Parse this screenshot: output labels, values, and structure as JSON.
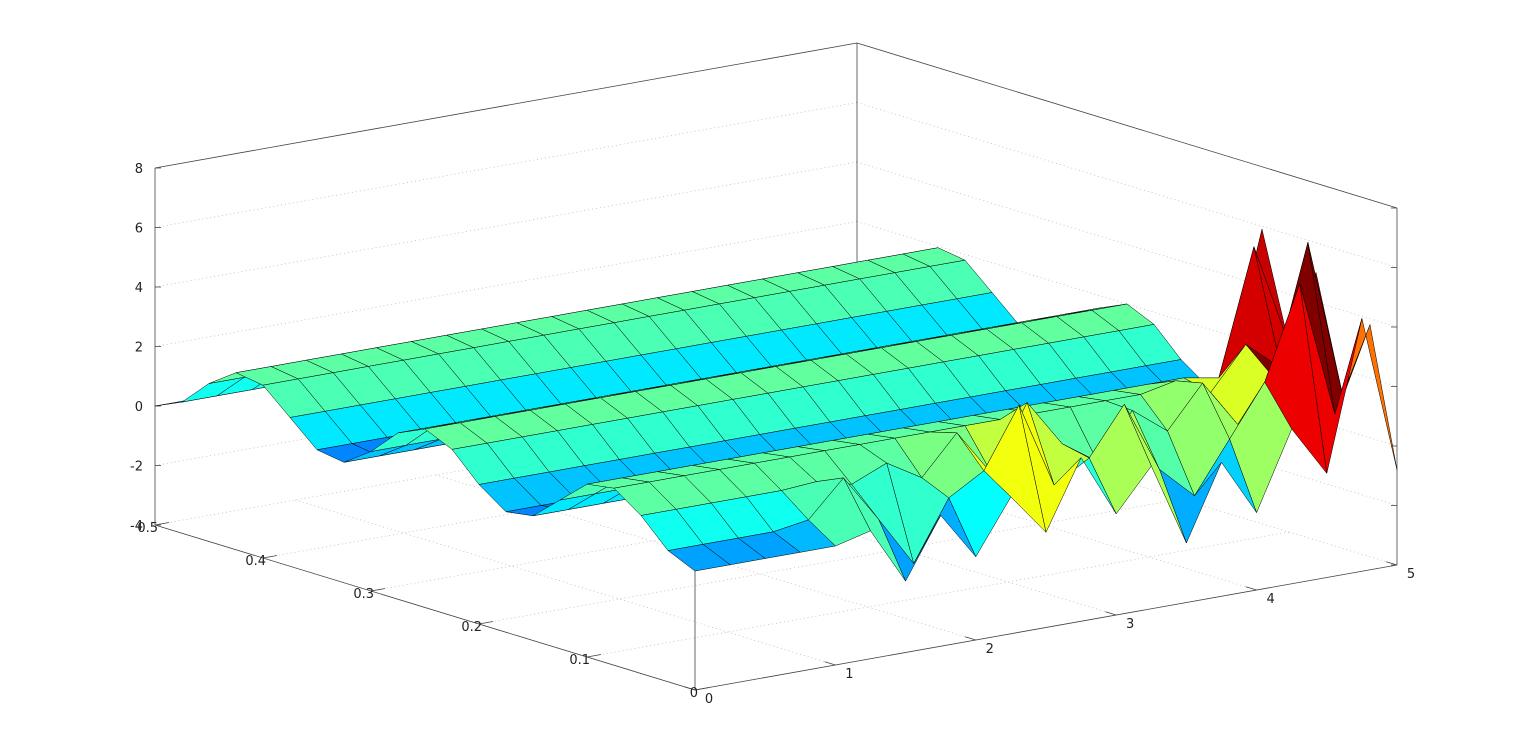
{
  "chart_data": {
    "type": "surface",
    "x": [
      0,
      0.25,
      0.5,
      0.75,
      1,
      1.25,
      1.5,
      1.75,
      2,
      2.25,
      2.5,
      2.75,
      3,
      3.25,
      3.5,
      3.75,
      4,
      4.25,
      4.5,
      4.75,
      5
    ],
    "y": [
      0,
      0.025,
      0.05,
      0.075,
      0.1,
      0.125,
      0.15,
      0.175,
      0.2,
      0.225,
      0.25,
      0.275,
      0.3,
      0.325,
      0.35,
      0.375,
      0.4,
      0.425,
      0.45,
      0.475,
      0.5
    ],
    "z": [
      [
        0,
        0,
        0,
        0,
        0,
        0.3,
        -1.6,
        0.4,
        -1.2,
        0.6,
        -0.8,
        1.5,
        -0.6,
        0.8,
        -2.0,
        0.5,
        -1.4,
        1.2,
        -0.5,
        4.5,
        -0.8
      ],
      [
        0.41,
        0.41,
        0.41,
        0.41,
        0.6,
        1.8,
        0.2,
        -1.5,
        0.5,
        1.2,
        3.2,
        0.3,
        1.0,
        2.6,
        0.2,
        -0.9,
        0.8,
        2.5,
        5.6,
        1.0,
        3.8
      ],
      [
        1.31,
        1.31,
        1.31,
        1.31,
        1.31,
        1.4,
        1.1,
        1.6,
        0.9,
        2.2,
        0.6,
        2.8,
        1.2,
        0.4,
        1.9,
        1.0,
        2.4,
        0.8,
        2.2,
        6.5,
        1.1
      ],
      [
        1.95,
        1.95,
        1.95,
        1.95,
        1.95,
        1.95,
        1.95,
        1.95,
        1.95,
        1.95,
        1.95,
        1.95,
        1.95,
        1.95,
        1.95,
        1.95,
        2.2,
        1.6,
        3.0,
        2.0,
        5.0
      ],
      [
        1.81,
        1.81,
        1.81,
        1.81,
        1.81,
        1.81,
        1.81,
        1.81,
        1.81,
        1.81,
        1.81,
        1.81,
        1.81,
        1.81,
        1.81,
        1.81,
        1.81,
        1.81,
        1.6,
        5.8,
        2.3
      ],
      [
        1,
        1,
        1,
        1,
        1,
        1,
        1,
        1,
        1,
        1,
        1,
        1,
        1,
        1,
        1,
        1,
        1,
        1,
        1,
        1.2,
        5.9
      ],
      [
        0.19,
        0.19,
        0.19,
        0.19,
        0.19,
        0.19,
        0.19,
        0.19,
        0.19,
        0.19,
        0.19,
        0.19,
        0.19,
        0.19,
        0.19,
        0.19,
        0.19,
        0.19,
        0.19,
        0.19,
        0.4
      ],
      [
        0.05,
        0.05,
        0.05,
        0.05,
        0.05,
        0.05,
        0.05,
        0.05,
        0.05,
        0.05,
        0.05,
        0.05,
        0.05,
        0.05,
        0.05,
        0.05,
        0.05,
        0.05,
        0.05,
        0.05,
        0.05
      ],
      [
        0.69,
        0.69,
        0.69,
        0.69,
        0.69,
        0.69,
        0.69,
        0.69,
        0.69,
        0.69,
        0.69,
        0.69,
        0.69,
        0.69,
        0.69,
        0.69,
        0.69,
        0.69,
        0.69,
        0.69,
        0.69
      ],
      [
        1.59,
        1.59,
        1.59,
        1.59,
        1.59,
        1.59,
        1.59,
        1.59,
        1.59,
        1.59,
        1.59,
        1.59,
        1.59,
        1.59,
        1.59,
        1.59,
        1.59,
        1.59,
        1.59,
        1.59,
        1.59
      ],
      [
        2,
        2,
        2,
        2,
        2,
        2,
        2,
        2,
        2,
        2,
        2,
        2,
        2,
        2,
        2,
        2,
        2,
        2,
        2,
        2,
        2
      ],
      [
        1.59,
        1.59,
        1.59,
        1.59,
        1.59,
        1.59,
        1.59,
        1.59,
        1.59,
        1.59,
        1.59,
        1.59,
        1.59,
        1.59,
        1.59,
        1.59,
        1.59,
        1.59,
        1.59,
        1.59,
        1.59
      ],
      [
        0.69,
        0.69,
        0.69,
        0.69,
        0.69,
        0.69,
        0.69,
        0.69,
        0.69,
        0.69,
        0.69,
        0.69,
        0.69,
        0.69,
        0.69,
        0.69,
        0.69,
        0.69,
        0.69,
        0.69,
        0.69
      ],
      [
        0.05,
        0.05,
        0.05,
        0.05,
        0.05,
        0.05,
        0.05,
        0.05,
        0.05,
        0.05,
        0.05,
        0.05,
        0.05,
        0.05,
        0.05,
        0.05,
        0.05,
        0.05,
        0.05,
        0.05,
        0.05
      ],
      [
        0.19,
        0.19,
        0.19,
        0.19,
        0.19,
        0.19,
        0.19,
        0.19,
        0.19,
        0.19,
        0.19,
        0.19,
        0.19,
        0.19,
        0.19,
        0.19,
        0.19,
        0.19,
        0.19,
        0.19,
        0.19
      ],
      [
        1,
        1,
        1,
        1,
        1,
        1,
        1,
        1,
        1,
        1,
        1,
        1,
        1,
        1,
        1,
        1,
        1,
        1,
        1,
        1,
        1
      ],
      [
        1.81,
        1.81,
        1.81,
        1.81,
        1.81,
        1.81,
        1.81,
        1.81,
        1.81,
        1.81,
        1.81,
        1.81,
        1.81,
        1.81,
        1.81,
        1.81,
        1.81,
        1.81,
        1.81,
        1.81,
        1.81
      ],
      [
        1.95,
        1.95,
        1.95,
        1.95,
        1.95,
        1.95,
        1.95,
        1.95,
        1.95,
        1.95,
        1.95,
        1.95,
        1.95,
        1.95,
        1.95,
        1.95,
        1.95,
        1.95,
        1.95,
        1.95,
        1.95
      ],
      [
        1.31,
        1.31,
        1.31,
        1.31,
        1.31,
        1.31,
        1.31,
        1.31,
        1.31,
        1.31,
        1.31,
        1.31,
        1.31,
        1.31,
        1.31,
        1.31,
        1.31,
        1.31,
        1.31,
        1.31,
        1.31
      ],
      [
        0.41,
        0.41,
        0.41,
        0.41,
        0.41,
        0.41,
        0.41,
        0.41,
        0.41,
        0.41,
        0.41,
        0.41,
        0.41,
        0.41,
        0.41,
        0.41,
        0.41,
        0.41,
        0.41,
        0.41,
        0.41
      ],
      [
        0,
        0,
        0,
        0,
        0,
        0,
        0,
        0,
        0,
        0,
        0,
        0,
        0,
        0,
        0,
        0,
        0,
        0,
        0,
        0,
        0
      ]
    ],
    "xlim": [
      0,
      5
    ],
    "ylim": [
      0,
      0.5
    ],
    "zlim": [
      -4,
      8
    ],
    "xticks": [
      0,
      1,
      2,
      3,
      4,
      5
    ],
    "yticks": [
      0,
      0.1,
      0.2,
      0.3,
      0.4,
      0.5
    ],
    "zticks": [
      -4,
      -2,
      0,
      2,
      4,
      6,
      8
    ],
    "grid": true,
    "colormap": "jet",
    "edgecolor": "#000000"
  }
}
